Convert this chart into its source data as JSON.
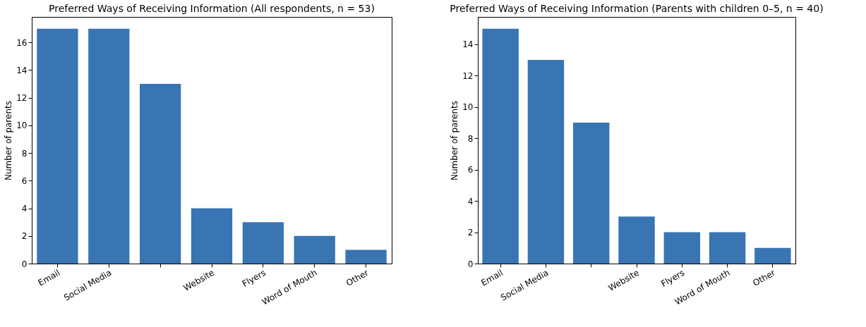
{
  "chart_data": [
    {
      "type": "bar",
      "title": "Preferred Ways of Receiving Information (All respondents, n = 53)",
      "ylabel": "Number of parents",
      "categories": [
        "Email",
        "Social Media",
        null,
        "Website",
        "Flyers",
        "Word of Mouth",
        "Other"
      ],
      "values": [
        17,
        17,
        13,
        4,
        3,
        2,
        1
      ],
      "color": "#3875b2",
      "ylim": [
        0,
        17.85
      ],
      "yticks": [
        0,
        2,
        4,
        6,
        8,
        10,
        12,
        14,
        16
      ]
    },
    {
      "type": "bar",
      "title": "Preferred Ways of Receiving Information (Parents with children 0–5, n = 40)",
      "ylabel": "Number of parents",
      "categories": [
        "Email",
        "Social Media",
        null,
        "Website",
        "Flyers",
        "Word of Mouth",
        "Other"
      ],
      "values": [
        15,
        13,
        9,
        3,
        2,
        2,
        1
      ],
      "color": "#3875b2",
      "ylim": [
        0,
        15.75
      ],
      "yticks": [
        0,
        2,
        4,
        6,
        8,
        10,
        12,
        14
      ]
    }
  ]
}
